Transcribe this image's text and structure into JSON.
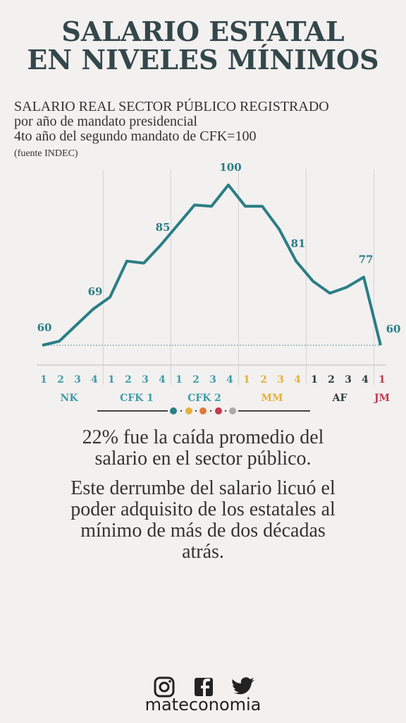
{
  "header": {
    "title": [
      "SALARIO ESTATAL",
      "EN NIVELES MÍNIMOS"
    ],
    "subtitle": [
      "SALARIO REAL SECTOR PÚBLICO REGISTRADO",
      "por año de mandato presidencial",
      "4to año del segundo mandato de CFK=100"
    ],
    "source": "(fuente INDEC)"
  },
  "chart_data": {
    "type": "line",
    "groups": [
      {
        "name": "NK",
        "color": "#3f9ea6",
        "categories": [
          "1",
          "2",
          "3",
          "4"
        ]
      },
      {
        "name": "CFK 1",
        "color": "#3f9ea6",
        "categories": [
          "1",
          "2",
          "3",
          "4"
        ]
      },
      {
        "name": "CFK 2",
        "color": "#3f9ea6",
        "categories": [
          "1",
          "2",
          "3",
          "4"
        ]
      },
      {
        "name": "MM",
        "color": "#e3b23c",
        "categories": [
          "1",
          "2",
          "3",
          "4"
        ]
      },
      {
        "name": "AF",
        "color": "#2f3b3f",
        "categories": [
          "1",
          "2",
          "3",
          "4"
        ]
      },
      {
        "name": "JM",
        "color": "#c23a4e",
        "categories": [
          "1"
        ]
      }
    ],
    "series": [
      {
        "color": "#2a7e85",
        "values": [
          60,
          61,
          65,
          69,
          72,
          81,
          80.5,
          85,
          90,
          95,
          94.7,
          100,
          94.7,
          94.7,
          89,
          81,
          76,
          73,
          74.5,
          77,
          60
        ],
        "value_labels": [
          "60",
          null,
          null,
          "69",
          null,
          null,
          null,
          "85",
          null,
          null,
          null,
          "100",
          null,
          null,
          null,
          "81",
          null,
          null,
          null,
          "77",
          "60"
        ]
      }
    ],
    "ylim": [
      60,
      100
    ]
  },
  "text": {
    "paragraphs": [
      [
        "22% fue la caída promedio del",
        "salario en el sector público."
      ],
      [
        "Este derrumbe del salario licuó el",
        "poder adquisito de los estatales al",
        "mínimo de más de dos décadas",
        "atrás."
      ]
    ]
  },
  "footer": {
    "brand": "mateconomia"
  }
}
